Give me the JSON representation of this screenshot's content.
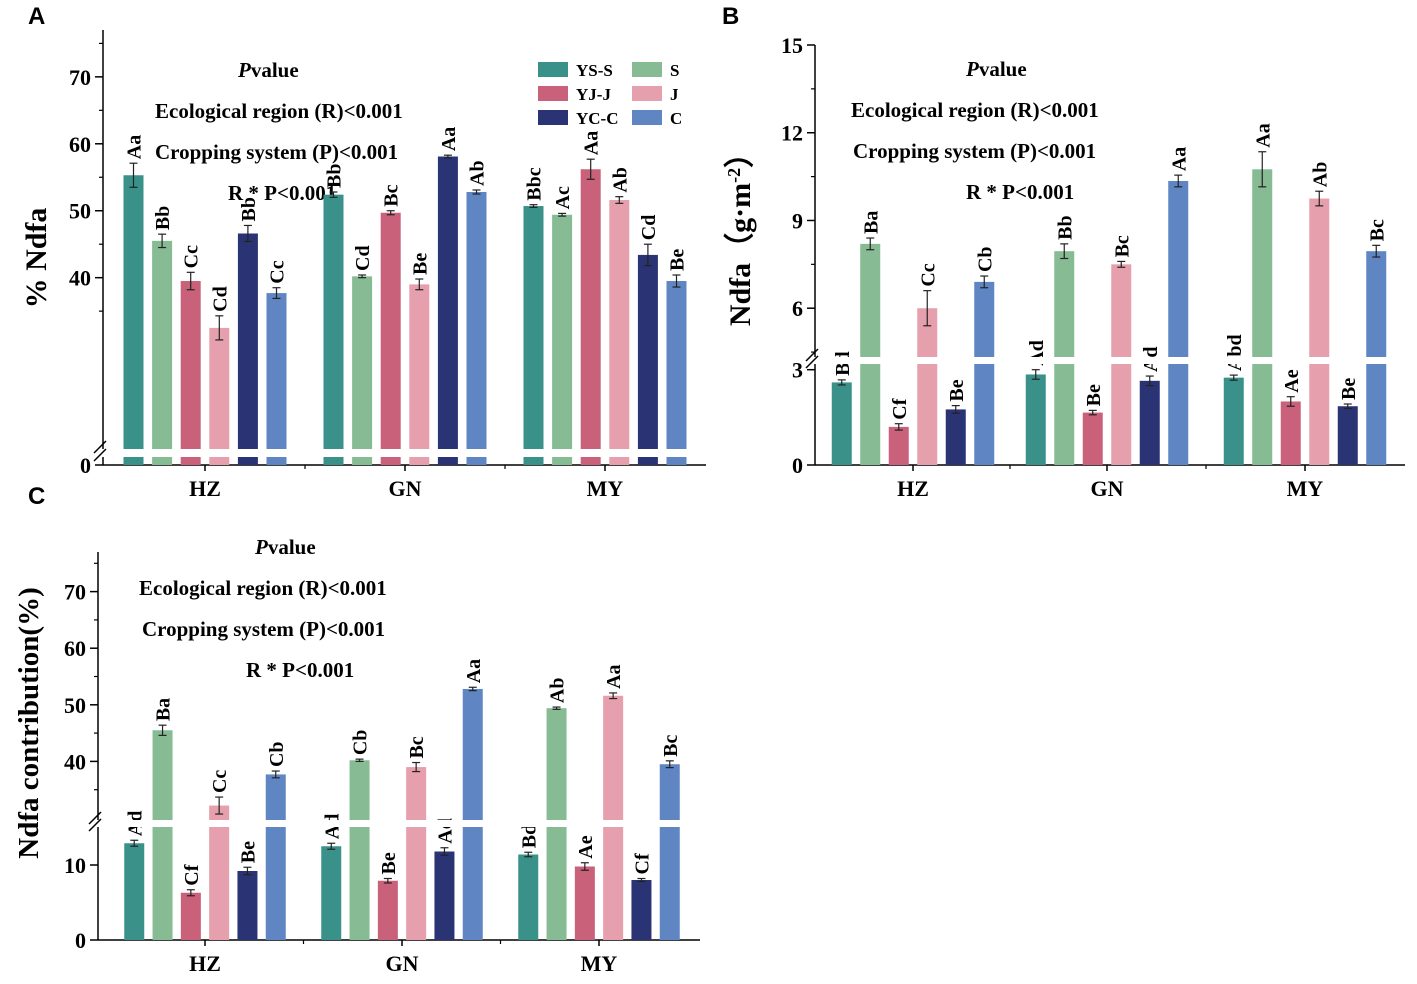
{
  "colors": {
    "YS-S": "#3a9189",
    "S": "#86bb93",
    "YJ-J": "#c9617b",
    "J": "#e6a0ad",
    "YC-C": "#2a3474",
    "C": "#5f86c2"
  },
  "legend": {
    "labels": [
      "YS-S",
      "S",
      "YJ-J",
      "J",
      "YC-C",
      "C"
    ]
  },
  "panels": [
    {
      "label": "A",
      "ylabel": "% Ndfa",
      "pvalue_title_italic": "P",
      "pvalue_title_rest": "value",
      "annotations": [
        "Ecological region (R)<0.001",
        "Cropping system (P)<0.001",
        "R * P<0.001"
      ]
    },
    {
      "label": "B",
      "ylabel_main": "Ndfa（g·m",
      "ylabel_sup": "-2",
      "ylabel_close": "）",
      "pvalue_title_italic": "P",
      "pvalue_title_rest": "value",
      "annotations": [
        "Ecological region (R)<0.001",
        "Cropping system (P)<0.001",
        "R * P<0.001"
      ]
    },
    {
      "label": "C",
      "ylabel": "Ndfa contribution(%)",
      "pvalue_title_italic": "P",
      "pvalue_title_rest": "value",
      "annotations": [
        "Ecological region (R)<0.001",
        "Cropping system (P)<0.001",
        "R * P<0.001"
      ]
    }
  ],
  "chart_data": [
    {
      "type": "bar",
      "panel": "A",
      "title": "",
      "xlabel": "",
      "ylabel": "% Ndfa",
      "categories": [
        "HZ",
        "GN",
        "MY"
      ],
      "y_break": {
        "lower": [
          0,
          0
        ],
        "upper": [
          28,
          77
        ]
      },
      "yticks_upper": [
        40,
        50,
        60,
        70
      ],
      "yticks_lower": [
        0
      ],
      "series": [
        {
          "name": "YS-S",
          "values": [
            55.3,
            52.4,
            50.7
          ],
          "errors": [
            1.8,
            0.4,
            0.2
          ],
          "labels": [
            "Aa",
            "Bb",
            "Bbc"
          ]
        },
        {
          "name": "S",
          "values": [
            45.5,
            40.2,
            49.4
          ],
          "errors": [
            1.0,
            0.2,
            0.2
          ],
          "labels": [
            "Bb",
            "Cd",
            "Ac"
          ]
        },
        {
          "name": "YJ-J",
          "values": [
            39.5,
            49.7,
            56.2
          ],
          "errors": [
            1.3,
            0.3,
            1.5
          ],
          "labels": [
            "Cc",
            "Bc",
            "Aa"
          ]
        },
        {
          "name": "J",
          "values": [
            32.5,
            39.0,
            51.6
          ],
          "errors": [
            1.8,
            0.8,
            0.5
          ],
          "labels": [
            "Cd",
            "Be",
            "Ab"
          ]
        },
        {
          "name": "YC-C",
          "values": [
            46.6,
            58.1,
            43.4
          ],
          "errors": [
            1.2,
            0.2,
            1.6
          ],
          "labels": [
            "Bb",
            "Aa",
            "Cd"
          ]
        },
        {
          "name": "C",
          "values": [
            37.7,
            52.8,
            39.5
          ],
          "errors": [
            0.8,
            0.3,
            0.9
          ],
          "labels": [
            "Cc",
            "Ab",
            "Be"
          ]
        }
      ]
    },
    {
      "type": "bar",
      "panel": "B",
      "title": "",
      "xlabel": "",
      "ylabel": "Ndfa（g·m-2）",
      "categories": [
        "HZ",
        "GN",
        "MY"
      ],
      "y_break": {
        "lower": [
          0,
          3.4
        ],
        "upper": [
          4.4,
          15
        ]
      },
      "yticks_upper": [
        6,
        9,
        12,
        15
      ],
      "yticks_lower": [
        0,
        3
      ],
      "series": [
        {
          "name": "YS-S",
          "values": [
            2.6,
            2.85,
            2.75
          ],
          "errors": [
            0.08,
            0.15,
            0.08
          ],
          "labels": [
            "Bd",
            "Ad",
            "Abd"
          ]
        },
        {
          "name": "S",
          "values": [
            8.2,
            7.95,
            10.75
          ],
          "errors": [
            0.2,
            0.25,
            0.6
          ],
          "labels": [
            "Ba",
            "Bb",
            "Aa"
          ]
        },
        {
          "name": "YJ-J",
          "values": [
            1.2,
            1.65,
            2.0
          ],
          "errors": [
            0.1,
            0.07,
            0.15
          ],
          "labels": [
            "Cf",
            "Be",
            "Ae"
          ]
        },
        {
          "name": "J",
          "values": [
            6.0,
            7.5,
            9.75
          ],
          "errors": [
            0.6,
            0.1,
            0.25
          ],
          "labels": [
            "Cc",
            "Bc",
            "Ab"
          ]
        },
        {
          "name": "YC-C",
          "values": [
            1.75,
            2.65,
            1.85
          ],
          "errors": [
            0.12,
            0.15,
            0.07
          ],
          "labels": [
            "Be",
            "Ad",
            "Be"
          ]
        },
        {
          "name": "C",
          "values": [
            6.9,
            10.35,
            7.95
          ],
          "errors": [
            0.2,
            0.2,
            0.2
          ],
          "labels": [
            "Cb",
            "Aa",
            "Bc"
          ]
        }
      ]
    },
    {
      "type": "bar",
      "panel": "C",
      "title": "",
      "xlabel": "",
      "ylabel": "Ndfa contribution(%)",
      "categories": [
        "HZ",
        "GN",
        "MY"
      ],
      "y_break": {
        "lower": [
          0,
          16
        ],
        "upper": [
          30,
          77
        ]
      },
      "yticks_upper": [
        40,
        50,
        60,
        70
      ],
      "yticks_lower": [
        0,
        10
      ],
      "series": [
        {
          "name": "YS-S",
          "values": [
            12.9,
            12.5,
            11.4
          ],
          "errors": [
            0.4,
            0.4,
            0.3
          ],
          "labels": [
            "Ad",
            "Ad",
            "Bd"
          ]
        },
        {
          "name": "S",
          "values": [
            45.5,
            40.2,
            49.4
          ],
          "errors": [
            0.9,
            0.2,
            0.2
          ],
          "labels": [
            "Ba",
            "Cb",
            "Ab"
          ]
        },
        {
          "name": "YJ-J",
          "values": [
            6.3,
            7.9,
            9.8
          ],
          "errors": [
            0.4,
            0.3,
            0.5
          ],
          "labels": [
            "Cf",
            "Be",
            "Ae"
          ]
        },
        {
          "name": "J",
          "values": [
            32.2,
            39.0,
            51.6
          ],
          "errors": [
            1.5,
            0.8,
            0.5
          ],
          "labels": [
            "Cc",
            "Bc",
            "Aa"
          ]
        },
        {
          "name": "YC-C",
          "values": [
            9.2,
            11.8,
            8.0
          ],
          "errors": [
            0.5,
            0.5,
            0.2
          ],
          "labels": [
            "Be",
            "Ad",
            "Cf"
          ]
        },
        {
          "name": "C",
          "values": [
            37.7,
            52.8,
            39.5
          ],
          "errors": [
            0.6,
            0.3,
            0.6
          ],
          "labels": [
            "Cb",
            "Aa",
            "Bc"
          ]
        }
      ]
    }
  ]
}
